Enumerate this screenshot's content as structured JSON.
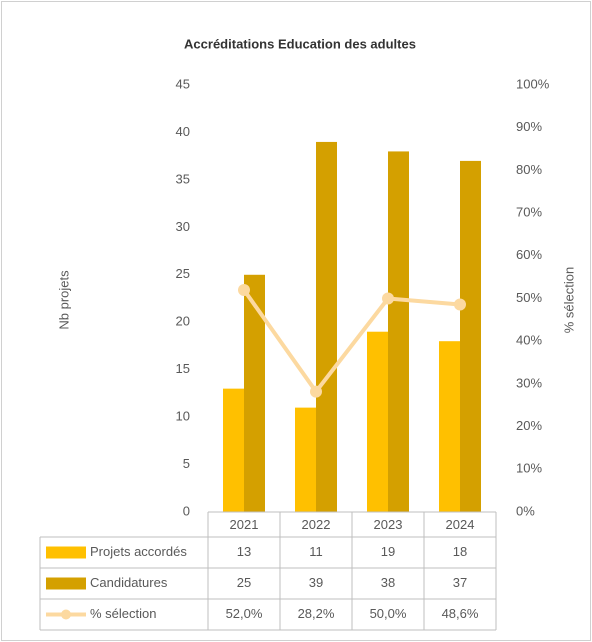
{
  "chart_data": {
    "type": "bar",
    "title": "Accréditations Education des adultes",
    "categories": [
      "2021",
      "2022",
      "2023",
      "2024"
    ],
    "series": [
      {
        "name": "Projets accordés",
        "color": "#ffc000",
        "values": [
          13,
          11,
          19,
          18
        ]
      },
      {
        "name": "Candidatures",
        "color": "#d4a000",
        "values": [
          25,
          39,
          38,
          37
        ]
      },
      {
        "name": "% sélection",
        "color": "#fcd9a0",
        "type": "line",
        "axis": "y2",
        "values": [
          52.0,
          28.2,
          50.0,
          48.6
        ],
        "value_labels": [
          "52,0%",
          "28,2%",
          "50,0%",
          "48,6%"
        ]
      }
    ],
    "y_label": "Nb projets",
    "y2_label": "% sélection",
    "ylim": [
      0,
      45
    ],
    "yticks": [
      0,
      5,
      10,
      15,
      20,
      25,
      30,
      35,
      40,
      45
    ],
    "y2lim": [
      0,
      100
    ],
    "y2ticks": [
      {
        "value": 0,
        "label": "0%"
      },
      {
        "value": 10,
        "label": "10%"
      },
      {
        "value": 20,
        "label": "20%"
      },
      {
        "value": 30,
        "label": "30%"
      },
      {
        "value": 40,
        "label": "40%"
      },
      {
        "value": 50,
        "label": "50%"
      },
      {
        "value": 60,
        "label": "60%"
      },
      {
        "value": 70,
        "label": "70%"
      },
      {
        "value": 80,
        "label": "80%"
      },
      {
        "value": 90,
        "label": "90%"
      },
      {
        "value": 100,
        "label": "100%"
      }
    ],
    "data_table": true
  }
}
